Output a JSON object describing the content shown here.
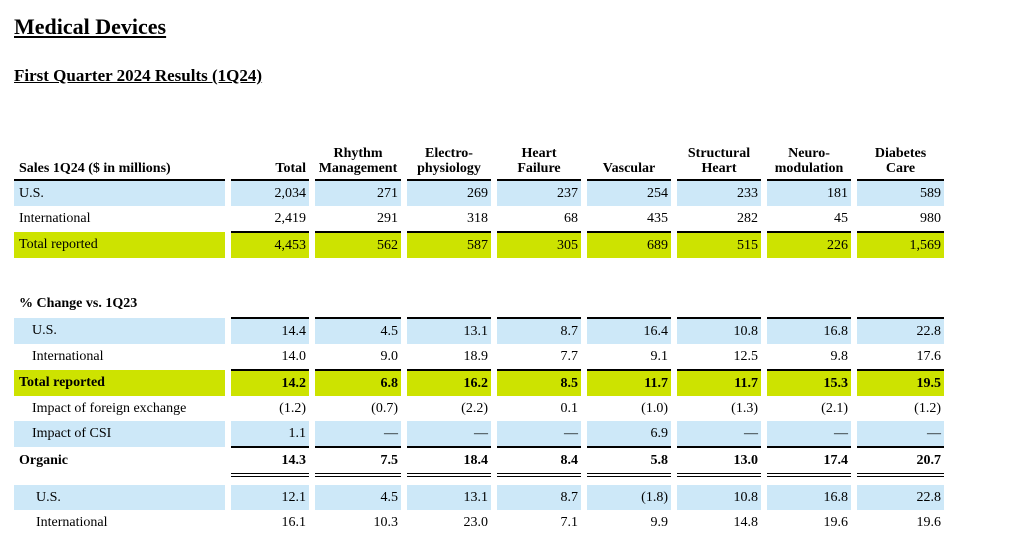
{
  "title": "Medical Devices",
  "subtitle": "First Quarter 2024 Results (1Q24)",
  "sales_table": {
    "header_label": "Sales  1Q24 ($ in millions)",
    "columns": [
      {
        "l1": "",
        "l2": "Total"
      },
      {
        "l1": "Rhythm",
        "l2": "Management"
      },
      {
        "l1": "Electro-",
        "l2": "physiology"
      },
      {
        "l1": "Heart",
        "l2": "Failure"
      },
      {
        "l1": "",
        "l2": "Vascular"
      },
      {
        "l1": "Structural",
        "l2": "Heart"
      },
      {
        "l1": "Neuro-",
        "l2": "modulation"
      },
      {
        "l1": "Diabetes",
        "l2": "Care"
      }
    ],
    "rows": [
      {
        "label": "U.S.",
        "values": [
          "2,034",
          "271",
          "269",
          "237",
          "254",
          "233",
          "181",
          "589"
        ]
      },
      {
        "label": "International",
        "values": [
          "2,419",
          "291",
          "318",
          "68",
          "435",
          "282",
          "45",
          "980"
        ]
      },
      {
        "label": "Total reported",
        "values": [
          "4,453",
          "562",
          "587",
          "305",
          "689",
          "515",
          "226",
          "1,569"
        ]
      }
    ]
  },
  "change_table": {
    "header_label": "% Change vs. 1Q23",
    "rows": [
      {
        "label": "U.S.",
        "values": [
          "14.4",
          "4.5",
          "13.1",
          "8.7",
          "16.4",
          "10.8",
          "16.8",
          "22.8"
        ]
      },
      {
        "label": "International",
        "values": [
          "14.0",
          "9.0",
          "18.9",
          "7.7",
          "9.1",
          "12.5",
          "9.8",
          "17.6"
        ]
      },
      {
        "label": "Total reported",
        "values": [
          "14.2",
          "6.8",
          "16.2",
          "8.5",
          "11.7",
          "11.7",
          "15.3",
          "19.5"
        ]
      },
      {
        "label": "Impact of foreign exchange",
        "values": [
          "(1.2)",
          "(0.7)",
          "(2.2)",
          "0.1",
          "(1.0)",
          "(1.3)",
          "(2.1)",
          "(1.2)"
        ]
      },
      {
        "label": "Impact of CSI",
        "values": [
          "1.1",
          "—",
          "—",
          "—",
          "6.9",
          "—",
          "—",
          "—"
        ]
      },
      {
        "label": "Organic",
        "values": [
          "14.3",
          "7.5",
          "18.4",
          "8.4",
          "5.8",
          "13.0",
          "17.4",
          "20.7"
        ]
      },
      {
        "label": "U.S.",
        "values": [
          "12.1",
          "4.5",
          "13.1",
          "8.7",
          "(1.8)",
          "10.8",
          "16.8",
          "22.8"
        ]
      },
      {
        "label": "International",
        "values": [
          "16.1",
          "10.3",
          "23.0",
          "7.1",
          "9.9",
          "14.8",
          "19.6",
          "19.6"
        ]
      }
    ]
  }
}
